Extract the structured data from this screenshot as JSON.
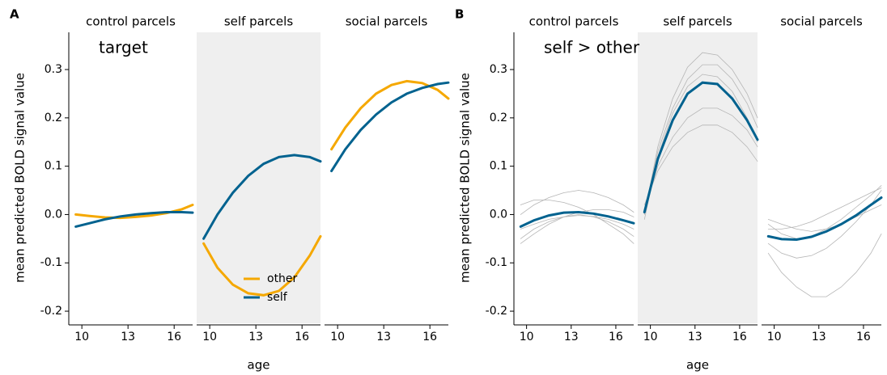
{
  "chart_data": [
    {
      "type": "line",
      "panel_label": "A",
      "annotation": "target",
      "x_label": "age",
      "y_label": "mean predicted BOLD signal value",
      "x": [
        9.6,
        10.5,
        11.5,
        12.5,
        13.5,
        14.5,
        15.5,
        16.5,
        17.2
      ],
      "xlim": [
        9.15,
        17.2
      ],
      "xticks": [
        10,
        13,
        16
      ],
      "ylim": [
        -0.225,
        0.377
      ],
      "yticks": [
        -0.2,
        -0.1,
        {
          "value": 0,
          "label": "0.0"
        },
        0.1,
        0.2,
        0.3
      ],
      "legend": "bottom-right",
      "facets": [
        {
          "title": "control parcels",
          "shaded": false,
          "series": [
            {
              "name": "other",
              "color": "#f5a800",
              "values": [
                0.0,
                -0.003,
                -0.006,
                -0.007,
                -0.005,
                -0.002,
                0.003,
                0.011,
                0.02
              ]
            },
            {
              "name": "self",
              "color": "#00628f",
              "values": [
                -0.025,
                -0.018,
                -0.01,
                -0.004,
                0.0,
                0.003,
                0.005,
                0.005,
                0.004
              ]
            }
          ]
        },
        {
          "title": "self parcels",
          "shaded": true,
          "series": [
            {
              "name": "other",
              "color": "#f5a800",
              "values": [
                -0.06,
                -0.11,
                -0.145,
                -0.163,
                -0.167,
                -0.158,
                -0.13,
                -0.085,
                -0.045
              ]
            },
            {
              "name": "self",
              "color": "#00628f",
              "values": [
                -0.05,
                0.0,
                0.045,
                0.08,
                0.105,
                0.119,
                0.123,
                0.119,
                0.11
              ]
            }
          ]
        },
        {
          "title": "social parcels",
          "shaded": false,
          "series": [
            {
              "name": "other",
              "color": "#f5a800",
              "values": [
                0.135,
                0.18,
                0.22,
                0.25,
                0.268,
                0.276,
                0.272,
                0.258,
                0.24
              ]
            },
            {
              "name": "self",
              "color": "#00628f",
              "values": [
                0.09,
                0.135,
                0.175,
                0.207,
                0.232,
                0.25,
                0.262,
                0.27,
                0.273
              ]
            }
          ]
        }
      ]
    },
    {
      "type": "line",
      "panel_label": "B",
      "annotation": "self > other",
      "x_label": "age",
      "y_label": "mean predicted BOLD signal value",
      "x": [
        9.6,
        10.5,
        11.5,
        12.5,
        13.5,
        14.5,
        15.5,
        16.5,
        17.2
      ],
      "xlim": [
        9.15,
        17.2
      ],
      "xticks": [
        10,
        13,
        16
      ],
      "ylim": [
        -0.225,
        0.377
      ],
      "yticks": [
        -0.2,
        -0.1,
        {
          "value": 0,
          "label": "0.0"
        },
        0.1,
        0.2,
        0.3
      ],
      "individual_color": "#b5b5b5",
      "facets": [
        {
          "title": "control parcels",
          "shaded": false,
          "individual_lines": [
            [
              -0.05,
              -0.03,
              -0.015,
              -0.005,
              0.0,
              -0.005,
              -0.015,
              -0.03,
              -0.045
            ],
            [
              0.0,
              0.02,
              0.035,
              0.045,
              0.05,
              0.045,
              0.035,
              0.02,
              0.005
            ],
            [
              -0.03,
              -0.02,
              -0.01,
              -0.005,
              -0.002,
              -0.004,
              -0.01,
              -0.02,
              -0.03
            ],
            [
              0.02,
              0.03,
              0.03,
              0.025,
              0.015,
              0.0,
              -0.02,
              -0.04,
              -0.06
            ],
            [
              -0.06,
              -0.04,
              -0.02,
              -0.005,
              0.005,
              0.01,
              0.01,
              0.005,
              -0.005
            ]
          ],
          "series": [
            {
              "color": "#00628f",
              "values": [
                -0.025,
                -0.012,
                -0.002,
                0.004,
                0.005,
                0.002,
                -0.004,
                -0.012,
                -0.018
              ]
            }
          ]
        },
        {
          "title": "self parcels",
          "shaded": true,
          "individual_lines": [
            [
              0.0,
              0.14,
              0.24,
              0.305,
              0.335,
              0.33,
              0.3,
              0.25,
              0.2
            ],
            [
              0.01,
              0.1,
              0.16,
              0.2,
              0.22,
              0.22,
              0.205,
              0.175,
              0.14
            ],
            [
              -0.01,
              0.12,
              0.21,
              0.265,
              0.29,
              0.285,
              0.255,
              0.2,
              0.15
            ],
            [
              0.02,
              0.09,
              0.14,
              0.17,
              0.185,
              0.185,
              0.17,
              0.14,
              0.11
            ],
            [
              0.0,
              0.13,
              0.22,
              0.28,
              0.31,
              0.31,
              0.28,
              0.23,
              0.18
            ]
          ],
          "series": [
            {
              "color": "#00628f",
              "values": [
                0.005,
                0.115,
                0.195,
                0.25,
                0.273,
                0.27,
                0.24,
                0.195,
                0.155
              ]
            }
          ]
        },
        {
          "title": "social parcels",
          "shaded": false,
          "individual_lines": [
            [
              -0.02,
              -0.04,
              -0.05,
              -0.045,
              -0.03,
              -0.01,
              0.015,
              0.04,
              0.06
            ],
            [
              -0.08,
              -0.12,
              -0.15,
              -0.17,
              -0.17,
              -0.15,
              -0.12,
              -0.08,
              -0.04
            ],
            [
              -0.03,
              -0.03,
              -0.025,
              -0.015,
              0.0,
              0.015,
              0.03,
              0.045,
              0.055
            ],
            [
              -0.06,
              -0.08,
              -0.09,
              -0.085,
              -0.07,
              -0.045,
              -0.015,
              0.02,
              0.05
            ],
            [
              -0.01,
              -0.02,
              -0.03,
              -0.035,
              -0.03,
              -0.02,
              -0.005,
              0.01,
              0.02
            ]
          ],
          "series": [
            {
              "color": "#00628f",
              "values": [
                -0.045,
                -0.051,
                -0.052,
                -0.046,
                -0.035,
                -0.02,
                -0.002,
                0.02,
                0.035
              ]
            }
          ]
        }
      ]
    }
  ]
}
